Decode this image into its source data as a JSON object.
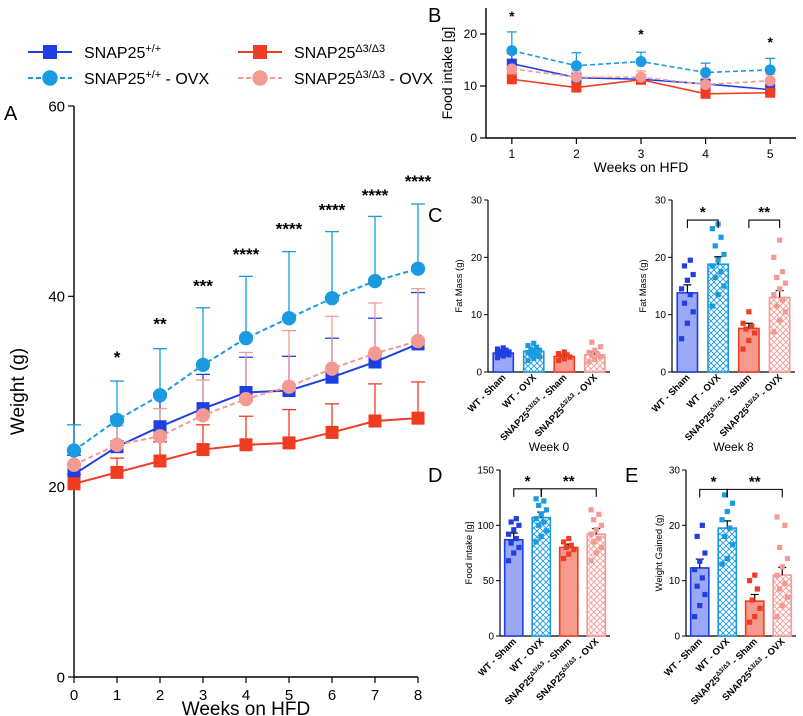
{
  "colors": {
    "wt": "#1f3fe0",
    "wt_ovx": "#1a9ae0",
    "mut": "#f03c22",
    "mut_ovx": "#f39a95"
  },
  "legend": {
    "wt": {
      "base": "SNAP25",
      "sup": "+/+",
      "suffix": ""
    },
    "wt_ovx": {
      "base": "SNAP25",
      "sup": "+/+",
      "suffix": " - OVX"
    },
    "mut": {
      "base": "SNAP25",
      "sup": "Δ3/Δ3",
      "suffix": ""
    },
    "mut_ovx": {
      "base": "SNAP25",
      "sup": "Δ3/Δ3",
      "suffix": " - OVX"
    }
  },
  "group_labels": [
    {
      "text": "WT - Sham"
    },
    {
      "text": "WT - OVX"
    },
    {
      "base": "SNAP25",
      "sup": "Δ3/Δ3",
      "suffix": " - Sham"
    },
    {
      "base": "SNAP25",
      "sup": "Δ3/Δ3",
      "suffix": " - OVX"
    }
  ],
  "chart_data": [
    {
      "panel": "A",
      "type": "line",
      "xlabel": "Weeks on HFD",
      "ylabel": "Weight (g)",
      "xlim": [
        0,
        8
      ],
      "ylim": [
        0,
        60
      ],
      "xticks": [
        0,
        1,
        2,
        3,
        4,
        5,
        6,
        7,
        8
      ],
      "yticks": [
        0,
        20,
        40,
        60
      ],
      "x": [
        0,
        1,
        2,
        3,
        4,
        5,
        6,
        7,
        8
      ],
      "series": [
        {
          "name": "SNAP25+/+",
          "key": "wt",
          "marker": "square",
          "dashed": false,
          "values": [
            21.3,
            24.2,
            26.3,
            28.2,
            29.9,
            30.1,
            31.5,
            33.1,
            35.0
          ],
          "err": [
            2.0,
            3.2,
            3.5,
            3.6,
            3.7,
            3.6,
            4.1,
            4.6,
            5.4
          ]
        },
        {
          "name": "SNAP25+/+ - OVX",
          "key": "wt_ovx",
          "marker": "circle",
          "dashed": true,
          "values": [
            23.8,
            27.0,
            29.6,
            32.8,
            35.6,
            37.7,
            39.8,
            41.6,
            42.9
          ],
          "err": [
            2.7,
            4.1,
            4.9,
            6.0,
            6.5,
            7.0,
            7.0,
            6.8,
            6.8
          ]
        },
        {
          "name": "SNAP25Δ3/Δ3",
          "key": "mut",
          "marker": "square",
          "dashed": false,
          "values": [
            20.3,
            21.5,
            22.7,
            23.9,
            24.4,
            24.6,
            25.7,
            26.9,
            27.2
          ],
          "err": [
            1.0,
            1.5,
            2.0,
            2.6,
            3.0,
            3.5,
            3.0,
            3.9,
            3.8
          ]
        },
        {
          "name": "SNAP25Δ3/Δ3 - OVX",
          "key": "mut_ovx",
          "marker": "circle",
          "dashed": true,
          "values": [
            22.3,
            24.4,
            25.3,
            27.5,
            29.2,
            30.5,
            32.4,
            34.0,
            35.3
          ],
          "err": [
            1.5,
            2.0,
            2.9,
            3.7,
            4.9,
            5.9,
            5.5,
            5.3,
            5.5
          ]
        }
      ],
      "significance": [
        {
          "x": 1,
          "y": 33.0,
          "label": "*"
        },
        {
          "x": 2,
          "y": 36.5,
          "label": "**"
        },
        {
          "x": 3,
          "y": 40.5,
          "label": "***"
        },
        {
          "x": 4,
          "y": 43.8,
          "label": "****"
        },
        {
          "x": 5,
          "y": 46.5,
          "label": "****"
        },
        {
          "x": 6,
          "y": 48.5,
          "label": "****"
        },
        {
          "x": 7,
          "y": 50.0,
          "label": "****"
        },
        {
          "x": 8,
          "y": 51.5,
          "label": "****"
        }
      ]
    },
    {
      "panel": "B",
      "type": "line",
      "xlabel": "Weeks on HFD",
      "ylabel": "Food intake [g]",
      "xlim": [
        0.6,
        5.4
      ],
      "ylim": [
        0,
        25
      ],
      "xticks": [
        1,
        2,
        3,
        4,
        5
      ],
      "yticks": [
        0,
        10,
        20
      ],
      "x": [
        1,
        2,
        3,
        4,
        5
      ],
      "series": [
        {
          "name": "SNAP25+/+",
          "key": "wt",
          "marker": "square",
          "dashed": false,
          "values": [
            14.3,
            11.6,
            11.3,
            10.4,
            9.3
          ],
          "err": [
            2.0,
            0.8,
            0.8,
            0.8,
            1.0
          ]
        },
        {
          "name": "SNAP25+/+ - OVX",
          "key": "wt_ovx",
          "marker": "circle",
          "dashed": true,
          "values": [
            16.8,
            13.9,
            14.7,
            12.6,
            13.1
          ],
          "err": [
            3.6,
            2.5,
            1.8,
            1.8,
            2.2
          ]
        },
        {
          "name": "SNAP25Δ3/Δ3",
          "key": "mut",
          "marker": "square",
          "dashed": false,
          "values": [
            11.3,
            9.7,
            11.2,
            8.5,
            8.7
          ],
          "err": [
            1.2,
            0.8,
            0.8,
            0.8,
            0.8
          ]
        },
        {
          "name": "SNAP25Δ3/Δ3 - OVX",
          "key": "mut_ovx",
          "marker": "circle",
          "dashed": true,
          "values": [
            13.3,
            11.7,
            11.7,
            10.3,
            11.0
          ],
          "err": [
            1.7,
            1.2,
            1.2,
            1.2,
            1.2
          ]
        }
      ],
      "significance": [
        {
          "x": 1,
          "y": 22.5,
          "label": "*"
        },
        {
          "x": 3,
          "y": 19.0,
          "label": "*"
        },
        {
          "x": 5,
          "y": 17.5,
          "label": "*"
        }
      ]
    },
    {
      "panel": "C1",
      "type": "bar",
      "caption": "Week 0",
      "ylabel": "Fat Mass (g)",
      "ylim": [
        0,
        30
      ],
      "yticks": [
        0,
        10,
        20,
        30
      ],
      "values": [
        3.3,
        3.6,
        2.7,
        3.0
      ],
      "err": [
        0.3,
        0.4,
        0.3,
        0.5
      ],
      "points": [
        [
          2.5,
          2.8,
          3.0,
          3.1,
          3.2,
          3.3,
          3.4,
          3.5,
          3.6,
          3.8,
          4.0,
          4.2
        ],
        [
          2.0,
          2.4,
          2.7,
          3.0,
          3.2,
          3.4,
          3.6,
          3.8,
          4.0,
          4.3,
          4.6,
          5.0
        ],
        [
          2.0,
          2.3,
          2.6,
          2.8,
          3.0,
          3.2,
          3.5
        ],
        [
          1.8,
          2.2,
          2.6,
          2.9,
          3.1,
          3.4,
          3.8,
          4.4,
          5.2
        ]
      ],
      "brackets": []
    },
    {
      "panel": "C2",
      "type": "bar",
      "caption": "Week 8",
      "ylabel": "Fat Mass (g)",
      "ylim": [
        0,
        30
      ],
      "yticks": [
        0,
        10,
        20,
        30
      ],
      "values": [
        13.8,
        18.8,
        7.6,
        13.0
      ],
      "err": [
        1.4,
        1.3,
        0.9,
        1.2
      ],
      "points": [
        [
          5.8,
          8.5,
          10.5,
          12.0,
          13.5,
          14.5,
          16.0,
          17.0,
          18.5,
          19.5
        ],
        [
          11.5,
          13.5,
          15.0,
          16.5,
          17.5,
          18.5,
          19.5,
          20.5,
          22.0,
          23.5,
          25.0,
          25.8
        ],
        [
          4.0,
          5.5,
          6.8,
          7.5,
          8.0,
          8.5,
          10.5
        ],
        [
          7.0,
          9.0,
          10.5,
          11.5,
          12.5,
          13.5,
          14.5,
          15.5,
          16.5,
          17.5,
          20.0,
          23.0
        ]
      ],
      "brackets": [
        {
          "from": 0,
          "to": 1,
          "label": "*",
          "y": 26.5
        },
        {
          "from": 2,
          "to": 3,
          "label": "**",
          "y": 26.5
        }
      ]
    },
    {
      "panel": "D",
      "type": "bar",
      "ylabel": "Food intake [g]",
      "ylim": [
        0,
        150
      ],
      "yticks": [
        0,
        50,
        100,
        150
      ],
      "values": [
        87,
        107,
        80,
        92
      ],
      "err": [
        6,
        5,
        3,
        5
      ],
      "points": [
        [
          68,
          75,
          80,
          84,
          88,
          92,
          96,
          100,
          103,
          106
        ],
        [
          85,
          90,
          95,
          100,
          103,
          106,
          110,
          114,
          118,
          122,
          124
        ],
        [
          70,
          74,
          78,
          80,
          82,
          85,
          88
        ],
        [
          68,
          75,
          80,
          85,
          88,
          92,
          96,
          100,
          105,
          110,
          114
        ]
      ],
      "brackets": [
        {
          "from": 0,
          "to": 1,
          "label": "*",
          "y": 133
        },
        {
          "from": 1,
          "to": 3,
          "label": "**",
          "y": 133
        }
      ]
    },
    {
      "panel": "E",
      "type": "bar",
      "ylabel": "Weight Gained (g)",
      "ylim": [
        0,
        30
      ],
      "yticks": [
        0,
        10,
        20,
        30
      ],
      "values": [
        12.3,
        19.5,
        6.3,
        11.0
      ],
      "err": [
        1.6,
        1.3,
        1.2,
        1.4
      ],
      "points": [
        [
          3.5,
          5.5,
          7.5,
          9.0,
          10.5,
          12.0,
          13.5,
          15.0,
          18.0,
          20.0
        ],
        [
          13.0,
          14.0,
          16.5,
          18.0,
          19.5,
          21.0,
          22.5,
          24.0,
          25.5
        ],
        [
          2.5,
          3.5,
          5.0,
          6.5,
          8.5,
          10.0,
          11.0
        ],
        [
          3.5,
          5.5,
          7.0,
          8.5,
          9.5,
          11.0,
          12.5,
          14.0,
          16.0,
          20.0,
          21.5
        ]
      ],
      "brackets": [
        {
          "from": 0,
          "to": 1,
          "label": "*",
          "y": 26.5
        },
        {
          "from": 1,
          "to": 3,
          "label": "**",
          "y": 26.5
        }
      ]
    }
  ]
}
